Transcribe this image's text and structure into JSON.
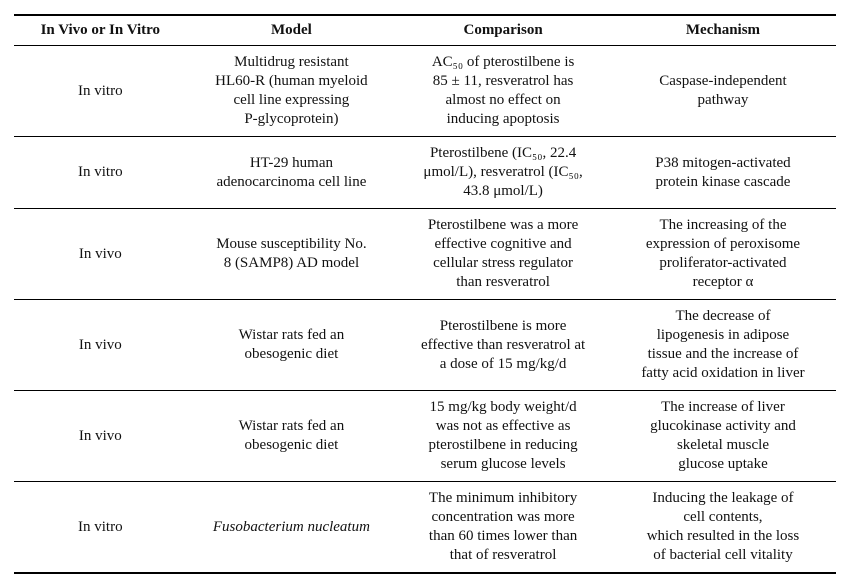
{
  "table": {
    "headers": {
      "in_vivo_or_in_vitro": "In Vivo or In Vitro",
      "model": "Model",
      "comparison": "Comparison",
      "mechanism": "Mechanism"
    },
    "rows": [
      {
        "type": "In vitro",
        "model": "Multidrug resistant\nHL60-R (human myeloid\ncell line expressing\nP-glycoprotein)",
        "comparison": "AC₅₀ of pterostilbene is\n85 ± 11, resveratrol has\nalmost no effect on\ninducing apoptosis",
        "mechanism": "Caspase-independent\npathway"
      },
      {
        "type": "In vitro",
        "model": "HT-29 human\nadenocarcinoma cell line",
        "comparison": "Pterostilbene (IC₅₀, 22.4\nμmol/L), resveratrol (IC₅₀,\n43.8 μmol/L)",
        "mechanism": "P38 mitogen-activated\nprotein kinase cascade"
      },
      {
        "type": "In vivo",
        "model": "Mouse susceptibility No.\n8 (SAMP8) AD model",
        "comparison": "Pterostilbene was a more\neffective cognitive and\ncellular stress regulator\nthan resveratrol",
        "mechanism": "The increasing of the\nexpression of peroxisome\nproliferator-activated\nreceptor α"
      },
      {
        "type": "In vivo",
        "model": "Wistar rats fed an\nobesogenic diet",
        "comparison": "Pterostilbene is more\neffective than resveratrol at\na dose of 15 mg/kg/d",
        "mechanism": "The decrease of\nlipogenesis in adipose\ntissue and the increase of\nfatty acid oxidation in liver"
      },
      {
        "type": "In vivo",
        "model": "Wistar rats fed an\nobesogenic diet",
        "comparison": "15 mg/kg body weight/d\nwas not as effective as\npterostilbene in reducing\nserum glucose levels",
        "mechanism": "The increase of liver\nglucokinase activity and\nskeletal muscle\nglucose uptake"
      },
      {
        "type": "In vitro",
        "model": "Fusobacterium nucleatum",
        "comparison": "The minimum inhibitory\nconcentration was more\nthan 60 times lower than\nthat of resveratrol",
        "mechanism": "Inducing the leakage of\ncell contents,\nwhich resulted in the loss\nof bacterial cell vitality"
      }
    ],
    "colors": {
      "text": "#111111",
      "rule": "#000000",
      "background": "#ffffff"
    }
  }
}
